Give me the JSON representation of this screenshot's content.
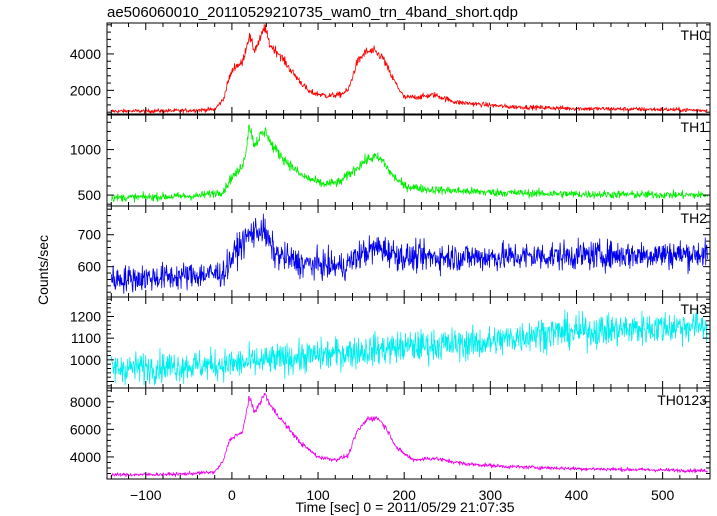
{
  "chart_data": {
    "type": "line",
    "title": "ae506060010_20110529210735_wam0_trn_4band_short.qdp",
    "xlabel": "Time [sec] 0 = 2011/05/29 21:07:35",
    "ylabel": "Counts/sec",
    "xlim": [
      -145,
      555
    ],
    "x_ticks": [
      -100,
      0,
      100,
      200,
      300,
      400,
      500
    ],
    "x_tick_labels": [
      "−100",
      "0",
      "100",
      "200",
      "300",
      "400",
      "500"
    ],
    "panels": [
      {
        "label": "TH0",
        "color": "#ff0000",
        "ylim": [
          700,
          5700
        ],
        "y_ticks": [
          2000,
          4000
        ],
        "y_tick_labels": [
          "2000",
          "4000"
        ],
        "noise": 80,
        "points": [
          [
            -140,
            850
          ],
          [
            -60,
            880
          ],
          [
            -20,
            950
          ],
          [
            -10,
            1500
          ],
          [
            -3,
            2700
          ],
          [
            3,
            3300
          ],
          [
            12,
            3500
          ],
          [
            20,
            5000
          ],
          [
            26,
            4200
          ],
          [
            32,
            4700
          ],
          [
            38,
            5500
          ],
          [
            44,
            4500
          ],
          [
            55,
            4000
          ],
          [
            70,
            3000
          ],
          [
            90,
            1900
          ],
          [
            110,
            1700
          ],
          [
            125,
            1750
          ],
          [
            135,
            2000
          ],
          [
            145,
            3500
          ],
          [
            155,
            4100
          ],
          [
            165,
            4150
          ],
          [
            175,
            3800
          ],
          [
            185,
            2800
          ],
          [
            200,
            1600
          ],
          [
            220,
            1650
          ],
          [
            235,
            1750
          ],
          [
            260,
            1350
          ],
          [
            320,
            1100
          ],
          [
            400,
            1000
          ],
          [
            500,
            950
          ],
          [
            550,
            900
          ]
        ]
      },
      {
        "label": "TH1",
        "color": "#00ee00",
        "ylim": [
          380,
          1380
        ],
        "y_ticks": [
          500,
          1000
        ],
        "y_tick_labels": [
          "500",
          "1000"
        ],
        "noise": 30,
        "points": [
          [
            -140,
            470
          ],
          [
            -40,
            490
          ],
          [
            -10,
            540
          ],
          [
            0,
            700
          ],
          [
            8,
            760
          ],
          [
            15,
            900
          ],
          [
            20,
            1280
          ],
          [
            26,
            1050
          ],
          [
            33,
            1150
          ],
          [
            40,
            1200
          ],
          [
            46,
            1050
          ],
          [
            60,
            900
          ],
          [
            80,
            720
          ],
          [
            105,
            620
          ],
          [
            125,
            640
          ],
          [
            140,
            760
          ],
          [
            155,
            880
          ],
          [
            165,
            920
          ],
          [
            175,
            880
          ],
          [
            185,
            730
          ],
          [
            200,
            600
          ],
          [
            230,
            560
          ],
          [
            300,
            530
          ],
          [
            400,
            510
          ],
          [
            550,
            500
          ]
        ]
      },
      {
        "label": "TH2",
        "color": "#0000ee",
        "ylim": [
          505,
          790
        ],
        "y_ticks": [
          600,
          700
        ],
        "y_tick_labels": [
          "600",
          "700"
        ],
        "noise": 30,
        "points": [
          [
            -140,
            560
          ],
          [
            -60,
            570
          ],
          [
            -10,
            580
          ],
          [
            5,
            650
          ],
          [
            20,
            700
          ],
          [
            35,
            720
          ],
          [
            50,
            640
          ],
          [
            80,
            610
          ],
          [
            130,
            600
          ],
          [
            150,
            640
          ],
          [
            170,
            660
          ],
          [
            200,
            630
          ],
          [
            300,
            630
          ],
          [
            400,
            635
          ],
          [
            550,
            640
          ]
        ]
      },
      {
        "label": "TH3",
        "color": "#00eeee",
        "ylim": [
          870,
          1290
        ],
        "y_ticks": [
          1000,
          1100,
          1200
        ],
        "y_tick_labels": [
          "1000",
          "1100",
          "1200"
        ],
        "noise": 50,
        "points": [
          [
            -140,
            960
          ],
          [
            0,
            980
          ],
          [
            100,
            1020
          ],
          [
            200,
            1060
          ],
          [
            300,
            1080
          ],
          [
            350,
            1120
          ],
          [
            400,
            1130
          ],
          [
            500,
            1150
          ],
          [
            550,
            1160
          ]
        ]
      },
      {
        "label": "TH0123",
        "color": "#ee00ee",
        "ylim": [
          2400,
          9000
        ],
        "y_ticks": [
          4000,
          6000,
          8000
        ],
        "y_tick_labels": [
          "4000",
          "6000",
          "8000"
        ],
        "noise": 90,
        "points": [
          [
            -140,
            2700
          ],
          [
            -60,
            2750
          ],
          [
            -20,
            2900
          ],
          [
            -10,
            3700
          ],
          [
            -3,
            5200
          ],
          [
            5,
            5600
          ],
          [
            12,
            5700
          ],
          [
            20,
            8300
          ],
          [
            26,
            7300
          ],
          [
            32,
            7800
          ],
          [
            38,
            8600
          ],
          [
            45,
            7700
          ],
          [
            60,
            6500
          ],
          [
            80,
            5000
          ],
          [
            100,
            4000
          ],
          [
            120,
            3800
          ],
          [
            135,
            4100
          ],
          [
            145,
            5800
          ],
          [
            158,
            6800
          ],
          [
            170,
            6800
          ],
          [
            180,
            6000
          ],
          [
            192,
            4600
          ],
          [
            210,
            3800
          ],
          [
            235,
            3900
          ],
          [
            270,
            3500
          ],
          [
            320,
            3300
          ],
          [
            400,
            3150
          ],
          [
            500,
            3050
          ],
          [
            550,
            3000
          ]
        ]
      }
    ]
  }
}
